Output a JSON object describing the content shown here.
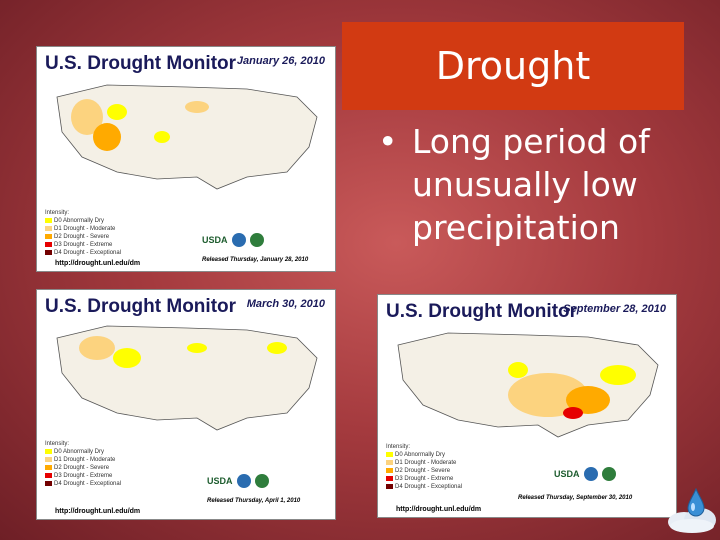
{
  "slide": {
    "title": "Drought",
    "bullet_mark": "•",
    "bullet_lines": [
      "Long period of",
      "unusually low",
      "precipitation"
    ]
  },
  "maps": [
    {
      "heading": "U.S. Drought Monitor",
      "date": "January 26, 2010",
      "legend_title": "Intensity:",
      "legend": [
        "D0 Abnormally Dry",
        "D1 Drought - Moderate",
        "D2 Drought - Severe",
        "D3 Drought - Extreme",
        "D4 Drought - Exceptional"
      ],
      "released": "Released Thursday, January 28, 2010",
      "url": "http://drought.unl.edu/dm"
    },
    {
      "heading": "U.S. Drought Monitor",
      "date": "March 30, 2010",
      "legend_title": "Intensity:",
      "legend": [
        "D0 Abnormally Dry",
        "D1 Drought - Moderate",
        "D2 Drought - Severe",
        "D3 Drought - Extreme",
        "D4 Drought - Exceptional"
      ],
      "released": "Released Thursday, April 1, 2010",
      "url": "http://drought.unl.edu/dm"
    },
    {
      "heading": "U.S. Drought Monitor",
      "date": "September 28, 2010",
      "legend_title": "Intensity:",
      "legend": [
        "D0 Abnormally Dry",
        "D1 Drought - Moderate",
        "D2 Drought - Severe",
        "D3 Drought - Extreme",
        "D4 Drought - Exceptional"
      ],
      "released": "Released Thursday, September 30, 2010",
      "url": "http://drought.unl.edu/dm"
    }
  ],
  "usda_label": "USDA",
  "colors": {
    "d0": "#ffff00",
    "d1": "#fcd37f",
    "d2": "#ffaa00",
    "d3": "#e60000",
    "d4": "#730000",
    "title_bg": "#d23a12"
  }
}
